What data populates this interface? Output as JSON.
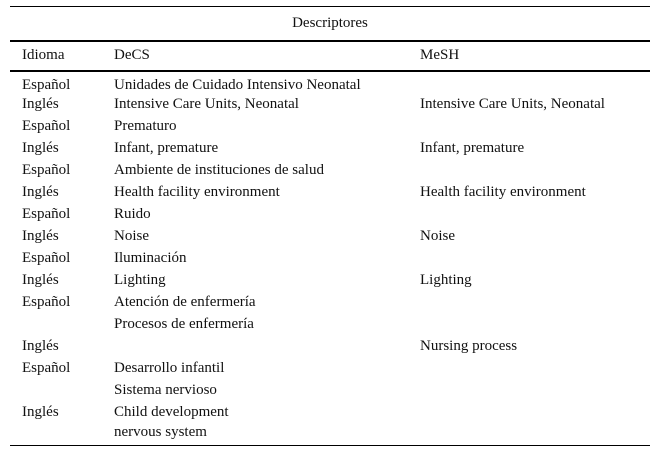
{
  "table": {
    "caption": "Descriptores",
    "columns": [
      "Idioma",
      "DeCS",
      "MeSH"
    ],
    "rows": [
      {
        "idioma": "Español",
        "decs": "Unidades de Cuidado Intensivo Neonatal",
        "mesh": ""
      },
      {
        "idioma": "Inglés",
        "decs": "Intensive Care Units, Neonatal",
        "mesh": "Intensive Care Units, Neonatal"
      },
      {
        "idioma": "Español",
        "decs": "Prematuro",
        "mesh": ""
      },
      {
        "idioma": "Inglés",
        "decs": "Infant, premature",
        "mesh": "Infant, premature"
      },
      {
        "idioma": "Español",
        "decs": "Ambiente de instituciones de salud",
        "mesh": ""
      },
      {
        "idioma": "Inglés",
        "decs": "Health facility environment",
        "mesh": "Health facility environment"
      },
      {
        "idioma": "Español",
        "decs": "Ruido",
        "mesh": ""
      },
      {
        "idioma": "Inglés",
        "decs": "Noise",
        "mesh": "Noise"
      },
      {
        "idioma": "Español",
        "decs": "Iluminación",
        "mesh": ""
      },
      {
        "idioma": "Inglés",
        "decs": "Lighting",
        "mesh": "Lighting"
      },
      {
        "idioma": "Español",
        "decs": "Atención de enfermería",
        "mesh": ""
      },
      {
        "idioma": "",
        "decs": "Procesos de enfermería",
        "mesh": ""
      },
      {
        "idioma": "Inglés",
        "decs": "",
        "mesh": "Nursing process"
      },
      {
        "idioma": "Español",
        "decs": "Desarrollo infantil",
        "mesh": ""
      },
      {
        "idioma": "",
        "decs": "Sistema nervioso",
        "mesh": ""
      },
      {
        "idioma": "Inglés",
        "decs": "Child development",
        "mesh": ""
      },
      {
        "idioma": "",
        "decs": "nervous system",
        "mesh": ""
      }
    ]
  }
}
